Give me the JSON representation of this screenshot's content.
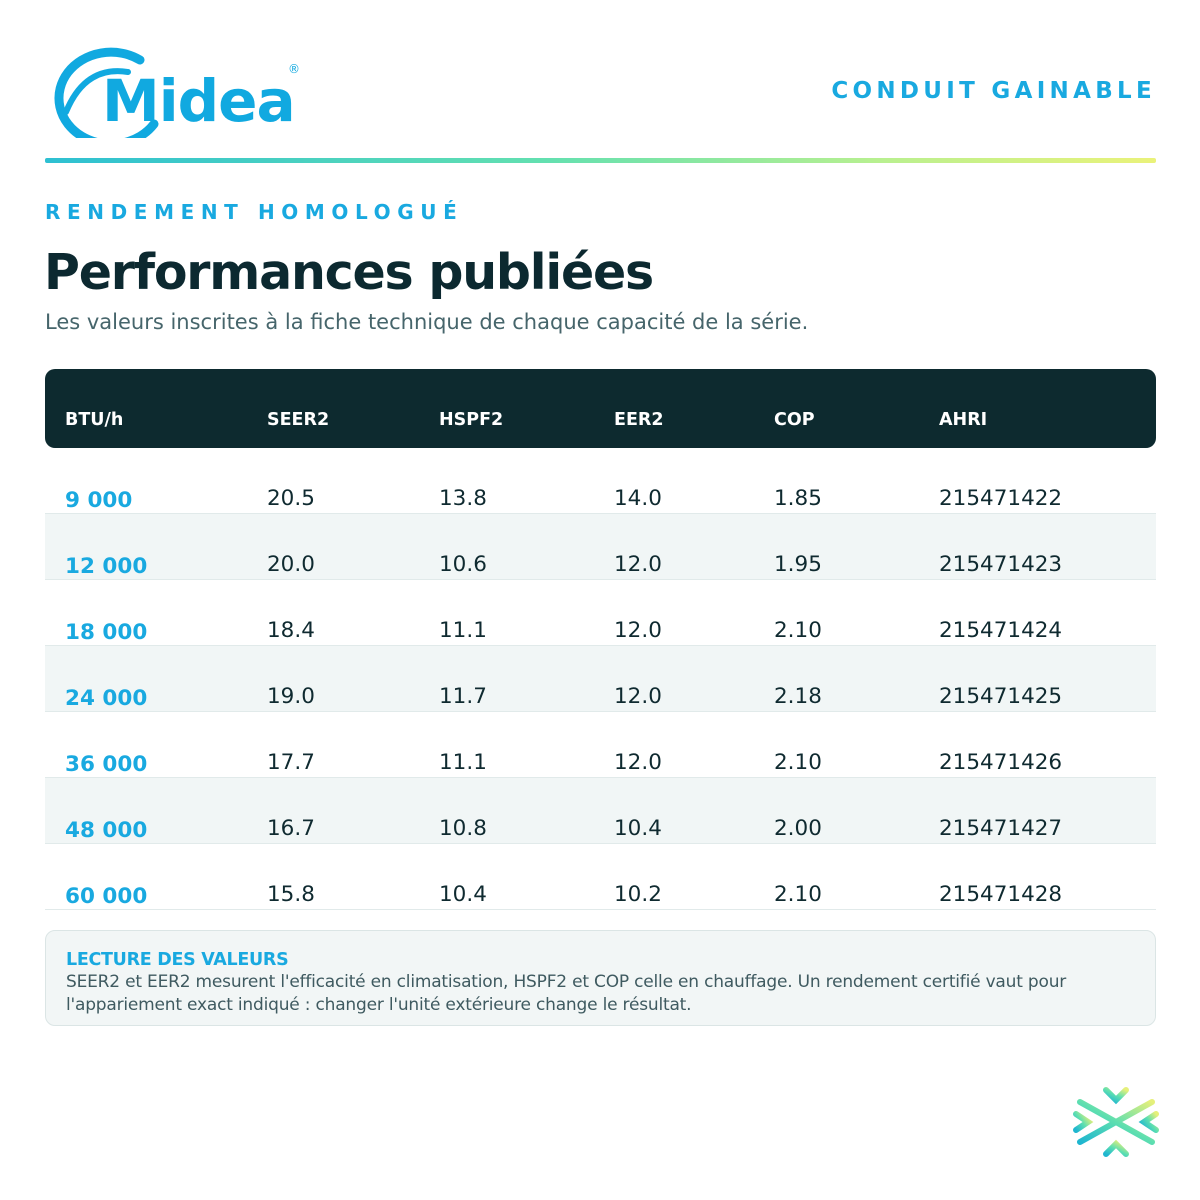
{
  "brand": {
    "name": "Midea",
    "registered_mark": "®"
  },
  "header": {
    "category": "CONDUIT GAINABLE"
  },
  "section": {
    "eyebrow": "RENDEMENT HOMOLOGUÉ",
    "title": "Performances publiées",
    "subtitle": "Les valeurs inscrites à la fiche technique de chaque capacité de la série."
  },
  "table": {
    "headers": [
      "BTU/h",
      "SEER2",
      "HSPF2",
      "EER2",
      "COP",
      "AHRI"
    ],
    "rows": [
      [
        "9 000",
        "20.5",
        "13.8",
        "14.0",
        "1.85",
        "215471422"
      ],
      [
        "12 000",
        "20.0",
        "10.6",
        "12.0",
        "1.95",
        "215471423"
      ],
      [
        "18 000",
        "18.4",
        "11.1",
        "12.0",
        "2.10",
        "215471424"
      ],
      [
        "24 000",
        "19.0",
        "11.7",
        "12.0",
        "2.18",
        "215471425"
      ],
      [
        "36 000",
        "17.7",
        "11.1",
        "12.0",
        "2.10",
        "215471426"
      ],
      [
        "48 000",
        "16.7",
        "10.8",
        "10.4",
        "2.00",
        "215471427"
      ],
      [
        "60 000",
        "15.8",
        "10.4",
        "10.2",
        "2.10",
        "215471428"
      ]
    ]
  },
  "note": {
    "title": "LECTURE DES VALEURS",
    "line1": "SEER2 et EER2 mesurent l'efficacité en climatisation, HSPF2 et COP celle en chauffage. Un rendement certifié vaut pour",
    "line2": "l'appariement exact indiqué : changer l'unité extérieure change le résultat."
  },
  "colors": {
    "accent": "#19a9e0",
    "dark": "#0d2a2f",
    "row_alt": "#f1f6f6",
    "gradient": [
      "#2ec0d2",
      "#63e0b0",
      "#b8f090",
      "#eaf27a"
    ]
  },
  "icons": {
    "logo": "midea-logo",
    "emblem": "snowflake-sun-icon"
  }
}
